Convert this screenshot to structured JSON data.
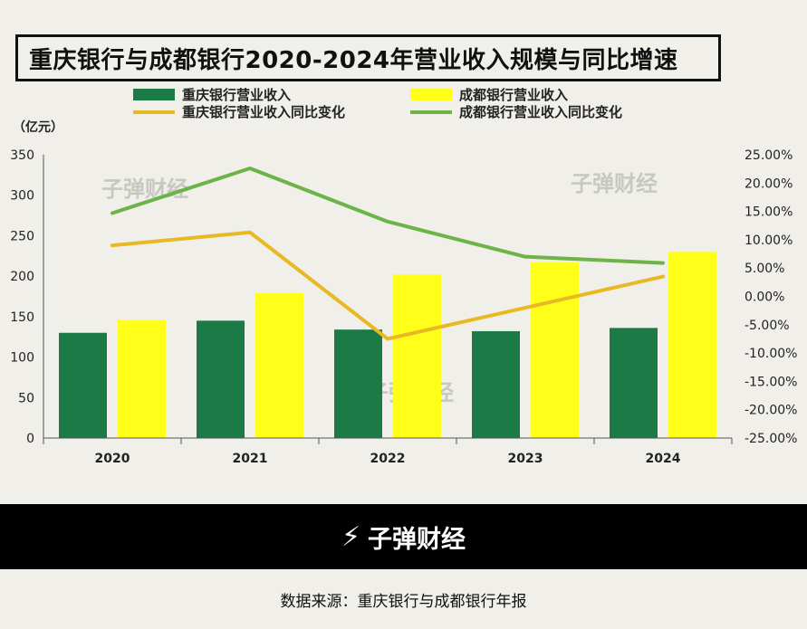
{
  "title": "重庆银行与成都银行2020-2024年营业收入规模与同比增速",
  "legend": {
    "cq_revenue": "重庆银行营业收入",
    "cd_revenue": "成都银行营业收入",
    "cq_growth": "重庆银行营业收入同比变化",
    "cd_growth": "成都银行营业收入同比变化"
  },
  "unit_label": "（亿元）",
  "watermark": "子弹财经",
  "footer": {
    "logo_text": "子弹财经",
    "logo_mark": "⚡"
  },
  "source": "数据来源：重庆银行与成都银行年报",
  "colors": {
    "cq": "#1b7a45",
    "cd": "#ffff1a",
    "cq_line": "#e8b923",
    "cd_line": "#6db446"
  },
  "chart_data": {
    "type": "bar+line",
    "categories": [
      "2020",
      "2021",
      "2022",
      "2023",
      "2024"
    ],
    "series": [
      {
        "name": "重庆银行营业收入",
        "type": "bar",
        "axis": "left",
        "values": [
          130,
          145,
          134,
          132,
          136
        ]
      },
      {
        "name": "成都银行营业收入",
        "type": "bar",
        "axis": "left",
        "values": [
          146,
          179,
          202,
          217,
          230
        ]
      },
      {
        "name": "重庆银行营业收入同比变化",
        "type": "line",
        "axis": "right",
        "values": [
          9.0,
          11.3,
          -7.5,
          -2.0,
          3.5
        ]
      },
      {
        "name": "成都银行营业收入同比变化",
        "type": "line",
        "axis": "right",
        "values": [
          14.7,
          22.6,
          13.2,
          7.0,
          5.9
        ]
      }
    ],
    "ylim_left": [
      0,
      350
    ],
    "yticks_left": [
      "0",
      "50",
      "100",
      "150",
      "200",
      "250",
      "300",
      "350"
    ],
    "ylim_right": [
      -25,
      25
    ],
    "yticks_right": [
      "-25.00%",
      "-20.00%",
      "-15.00%",
      "-10.00%",
      "-5.00%",
      "0.00%",
      "5.00%",
      "10.00%",
      "15.00%",
      "20.00%",
      "25.00%"
    ]
  }
}
